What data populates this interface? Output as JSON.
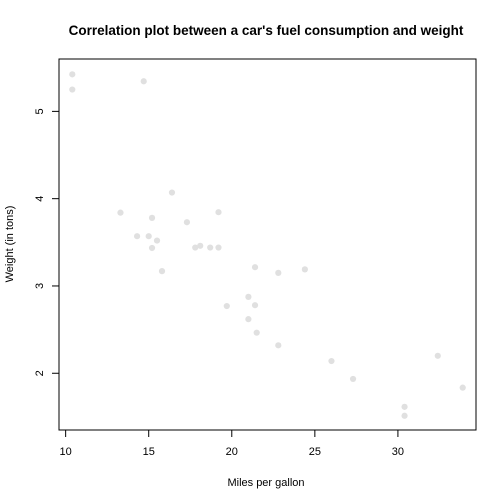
{
  "chart_data": {
    "type": "scatter",
    "title": "Correlation plot between a car's fuel consumption and weight",
    "xlabel": "Miles per gallon",
    "ylabel": "Weight (in tons)",
    "xlim": [
      9.6,
      34.7
    ],
    "ylim": [
      1.35,
      5.6
    ],
    "xticks": [
      10,
      15,
      20,
      25,
      30
    ],
    "yticks": [
      2,
      3,
      4,
      5
    ],
    "grid": false,
    "point_color": "#e0e0e0",
    "points": [
      {
        "x": 21.0,
        "y": 2.62
      },
      {
        "x": 21.0,
        "y": 2.875
      },
      {
        "x": 22.8,
        "y": 2.32
      },
      {
        "x": 21.4,
        "y": 3.215
      },
      {
        "x": 18.7,
        "y": 3.44
      },
      {
        "x": 18.1,
        "y": 3.46
      },
      {
        "x": 14.3,
        "y": 3.57
      },
      {
        "x": 24.4,
        "y": 3.19
      },
      {
        "x": 22.8,
        "y": 3.15
      },
      {
        "x": 19.2,
        "y": 3.44
      },
      {
        "x": 17.8,
        "y": 3.44
      },
      {
        "x": 16.4,
        "y": 4.07
      },
      {
        "x": 17.3,
        "y": 3.73
      },
      {
        "x": 15.2,
        "y": 3.78
      },
      {
        "x": 10.4,
        "y": 5.25
      },
      {
        "x": 10.4,
        "y": 5.424
      },
      {
        "x": 14.7,
        "y": 5.345
      },
      {
        "x": 32.4,
        "y": 2.2
      },
      {
        "x": 30.4,
        "y": 1.615
      },
      {
        "x": 33.9,
        "y": 1.835
      },
      {
        "x": 21.5,
        "y": 2.465
      },
      {
        "x": 15.5,
        "y": 3.52
      },
      {
        "x": 15.2,
        "y": 3.435
      },
      {
        "x": 13.3,
        "y": 3.84
      },
      {
        "x": 19.2,
        "y": 3.845
      },
      {
        "x": 27.3,
        "y": 1.935
      },
      {
        "x": 26.0,
        "y": 2.14
      },
      {
        "x": 30.4,
        "y": 1.513
      },
      {
        "x": 15.8,
        "y": 3.17
      },
      {
        "x": 19.7,
        "y": 2.77
      },
      {
        "x": 15.0,
        "y": 3.57
      },
      {
        "x": 21.4,
        "y": 2.78
      }
    ]
  }
}
